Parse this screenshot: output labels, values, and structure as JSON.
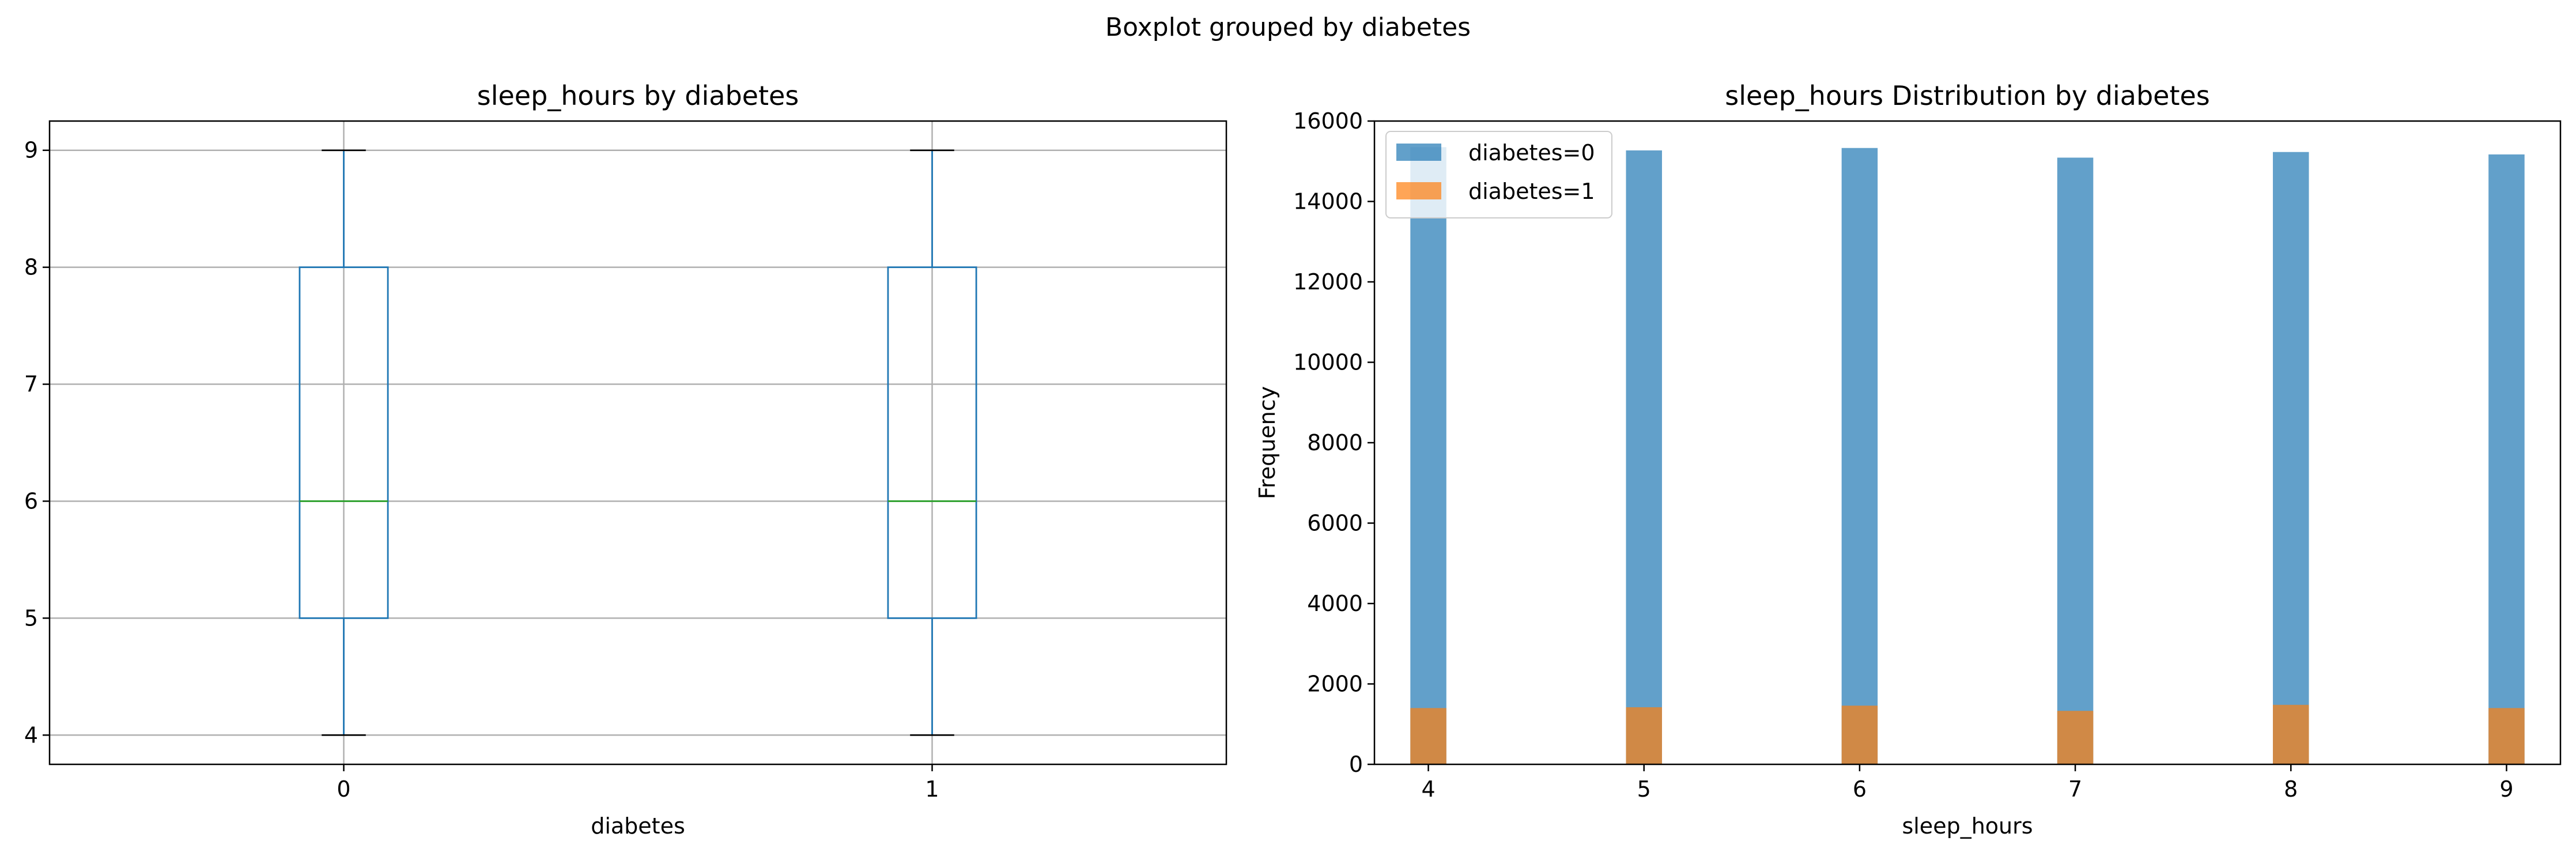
{
  "suptitle": "Boxplot grouped by diabetes",
  "colors": {
    "box": "#1f77b4",
    "median": "#2ca02c",
    "caps": "#000000",
    "grid": "#b0b0b0",
    "diabetes0": "#1f77b4",
    "diabetes1": "#ff7f0e"
  },
  "chart_data": [
    {
      "type": "box",
      "title": "sleep_hours by diabetes",
      "xlabel": "diabetes",
      "ylabel": "",
      "categories": [
        "0",
        "1"
      ],
      "boxes": [
        {
          "label": "0",
          "whislo": 4,
          "q1": 5,
          "med": 6,
          "q3": 8,
          "whishi": 9
        },
        {
          "label": "1",
          "whislo": 4,
          "q1": 5,
          "med": 6,
          "q3": 8,
          "whishi": 9
        }
      ],
      "ylim": [
        3.75,
        9.25
      ],
      "yticks": [
        4,
        5,
        6,
        7,
        8,
        9
      ],
      "grid": true
    },
    {
      "type": "bar",
      "title": "sleep_hours Distribution by diabetes",
      "xlabel": "sleep_hours",
      "ylabel": "Frequency",
      "x": [
        4,
        5,
        6,
        7,
        8,
        9
      ],
      "series": [
        {
          "name": "diabetes=0",
          "values": [
            15350,
            15270,
            15330,
            15090,
            15230,
            15170
          ]
        },
        {
          "name": "diabetes=1",
          "values": [
            1400,
            1420,
            1460,
            1330,
            1480,
            1400
          ]
        }
      ],
      "xlim": [
        3.75,
        9.25
      ],
      "ylim": [
        0,
        16000
      ],
      "xticks": [
        4,
        5,
        6,
        7,
        8,
        9
      ],
      "yticks": [
        0,
        2000,
        4000,
        6000,
        8000,
        10000,
        12000,
        14000,
        16000
      ],
      "bar_width": 0.167,
      "alpha": 0.7,
      "legend": "top-left",
      "grid": false
    }
  ]
}
